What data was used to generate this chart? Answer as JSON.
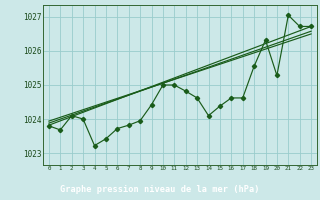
{
  "title": "Graphe pression niveau de la mer (hPa)",
  "background_color": "#cce8e8",
  "plot_bg": "#cce8e8",
  "grid_color": "#99cccc",
  "line_color": "#1a5c1a",
  "footer_bg": "#2d6b2d",
  "footer_text_color": "#ffffff",
  "xlim": [
    -0.5,
    23.5
  ],
  "ylim": [
    1022.65,
    1027.35
  ],
  "yticks": [
    1023,
    1024,
    1025,
    1026,
    1027
  ],
  "xticks": [
    0,
    1,
    2,
    3,
    4,
    5,
    6,
    7,
    8,
    9,
    10,
    11,
    12,
    13,
    14,
    15,
    16,
    17,
    18,
    19,
    20,
    21,
    22,
    23
  ],
  "main_line": [
    [
      0,
      1023.8
    ],
    [
      1,
      1023.68
    ],
    [
      2,
      1024.1
    ],
    [
      3,
      1024.0
    ],
    [
      4,
      1023.22
    ],
    [
      5,
      1023.42
    ],
    [
      6,
      1023.72
    ],
    [
      7,
      1023.82
    ],
    [
      8,
      1023.95
    ],
    [
      9,
      1024.42
    ],
    [
      10,
      1025.0
    ],
    [
      11,
      1025.0
    ],
    [
      12,
      1024.82
    ],
    [
      13,
      1024.62
    ],
    [
      14,
      1024.1
    ],
    [
      15,
      1024.38
    ],
    [
      16,
      1024.62
    ],
    [
      17,
      1024.62
    ],
    [
      18,
      1025.55
    ],
    [
      19,
      1026.32
    ],
    [
      20,
      1025.28
    ],
    [
      21,
      1027.05
    ],
    [
      22,
      1026.72
    ],
    [
      23,
      1026.72
    ]
  ],
  "trend_line1": [
    [
      0,
      1023.82
    ],
    [
      23,
      1026.72
    ]
  ],
  "trend_line2": [
    [
      0,
      1023.88
    ],
    [
      23,
      1026.58
    ]
  ],
  "trend_line3": [
    [
      0,
      1023.94
    ],
    [
      23,
      1026.5
    ]
  ]
}
